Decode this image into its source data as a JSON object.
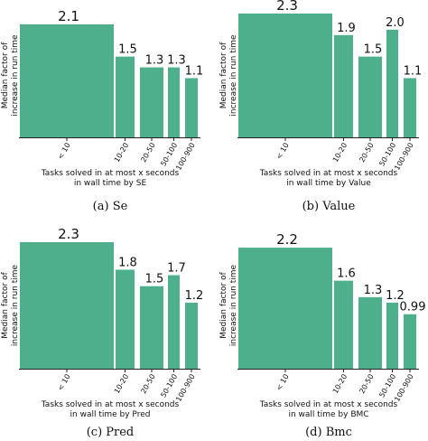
{
  "colors": {
    "bar": "#4daf8c",
    "axis": "#222222",
    "text": "#111111"
  },
  "chart_data": [
    {
      "type": "bar",
      "caption": "(a) Se",
      "ylabel_lines": [
        "Median factor of",
        "increase in run time"
      ],
      "xlabel_lines": [
        "Tasks solved in at most x seconds",
        "in wall time by SE"
      ],
      "grid": false,
      "categories": [
        "< 10",
        "10-20",
        "20-50",
        "50-100",
        "100-900"
      ],
      "values": [
        2.1,
        1.5,
        1.3,
        1.3,
        1.1
      ],
      "value_labels": [
        "2.1",
        "1.5",
        "1.3",
        "1.3",
        "1.1"
      ]
    },
    {
      "type": "bar",
      "caption": "(b) Value",
      "ylabel_lines": [
        "Median factor of",
        "increase in run time"
      ],
      "xlabel_lines": [
        "Tasks solved in at most x seconds",
        "in wall time by Value"
      ],
      "grid": false,
      "categories": [
        "< 10",
        "10-20",
        "20-50",
        "50-100",
        "100-900"
      ],
      "values": [
        2.3,
        1.9,
        1.5,
        2.0,
        1.1
      ],
      "value_labels": [
        "2.3",
        "1.9",
        "1.5",
        "2.0",
        "1.1"
      ]
    },
    {
      "type": "bar",
      "caption": "(c) Pred",
      "ylabel_lines": [
        "Median factor of",
        "increase in run time"
      ],
      "xlabel_lines": [
        "Tasks solved in at most x seconds",
        "in wall time by Pred"
      ],
      "grid": false,
      "categories": [
        "< 10",
        "10-20",
        "20-50",
        "50-100",
        "100-900"
      ],
      "values": [
        2.3,
        1.8,
        1.5,
        1.7,
        1.2
      ],
      "value_labels": [
        "2.3",
        "1.8",
        "1.5",
        "1.7",
        "1.2"
      ]
    },
    {
      "type": "bar",
      "caption": "(d) Bmc",
      "ylabel_lines": [
        "Median factor of",
        "increase in run time"
      ],
      "xlabel_lines": [
        "Tasks solved in at most x seconds",
        "in wall time by BMC"
      ],
      "grid": false,
      "categories": [
        "< 10",
        "10-20",
        "20-50",
        "50-100",
        "100-900"
      ],
      "values": [
        2.2,
        1.6,
        1.3,
        1.2,
        0.99
      ],
      "value_labels": [
        "2.2",
        "1.6",
        "1.3",
        "1.2",
        "0.99"
      ]
    }
  ]
}
